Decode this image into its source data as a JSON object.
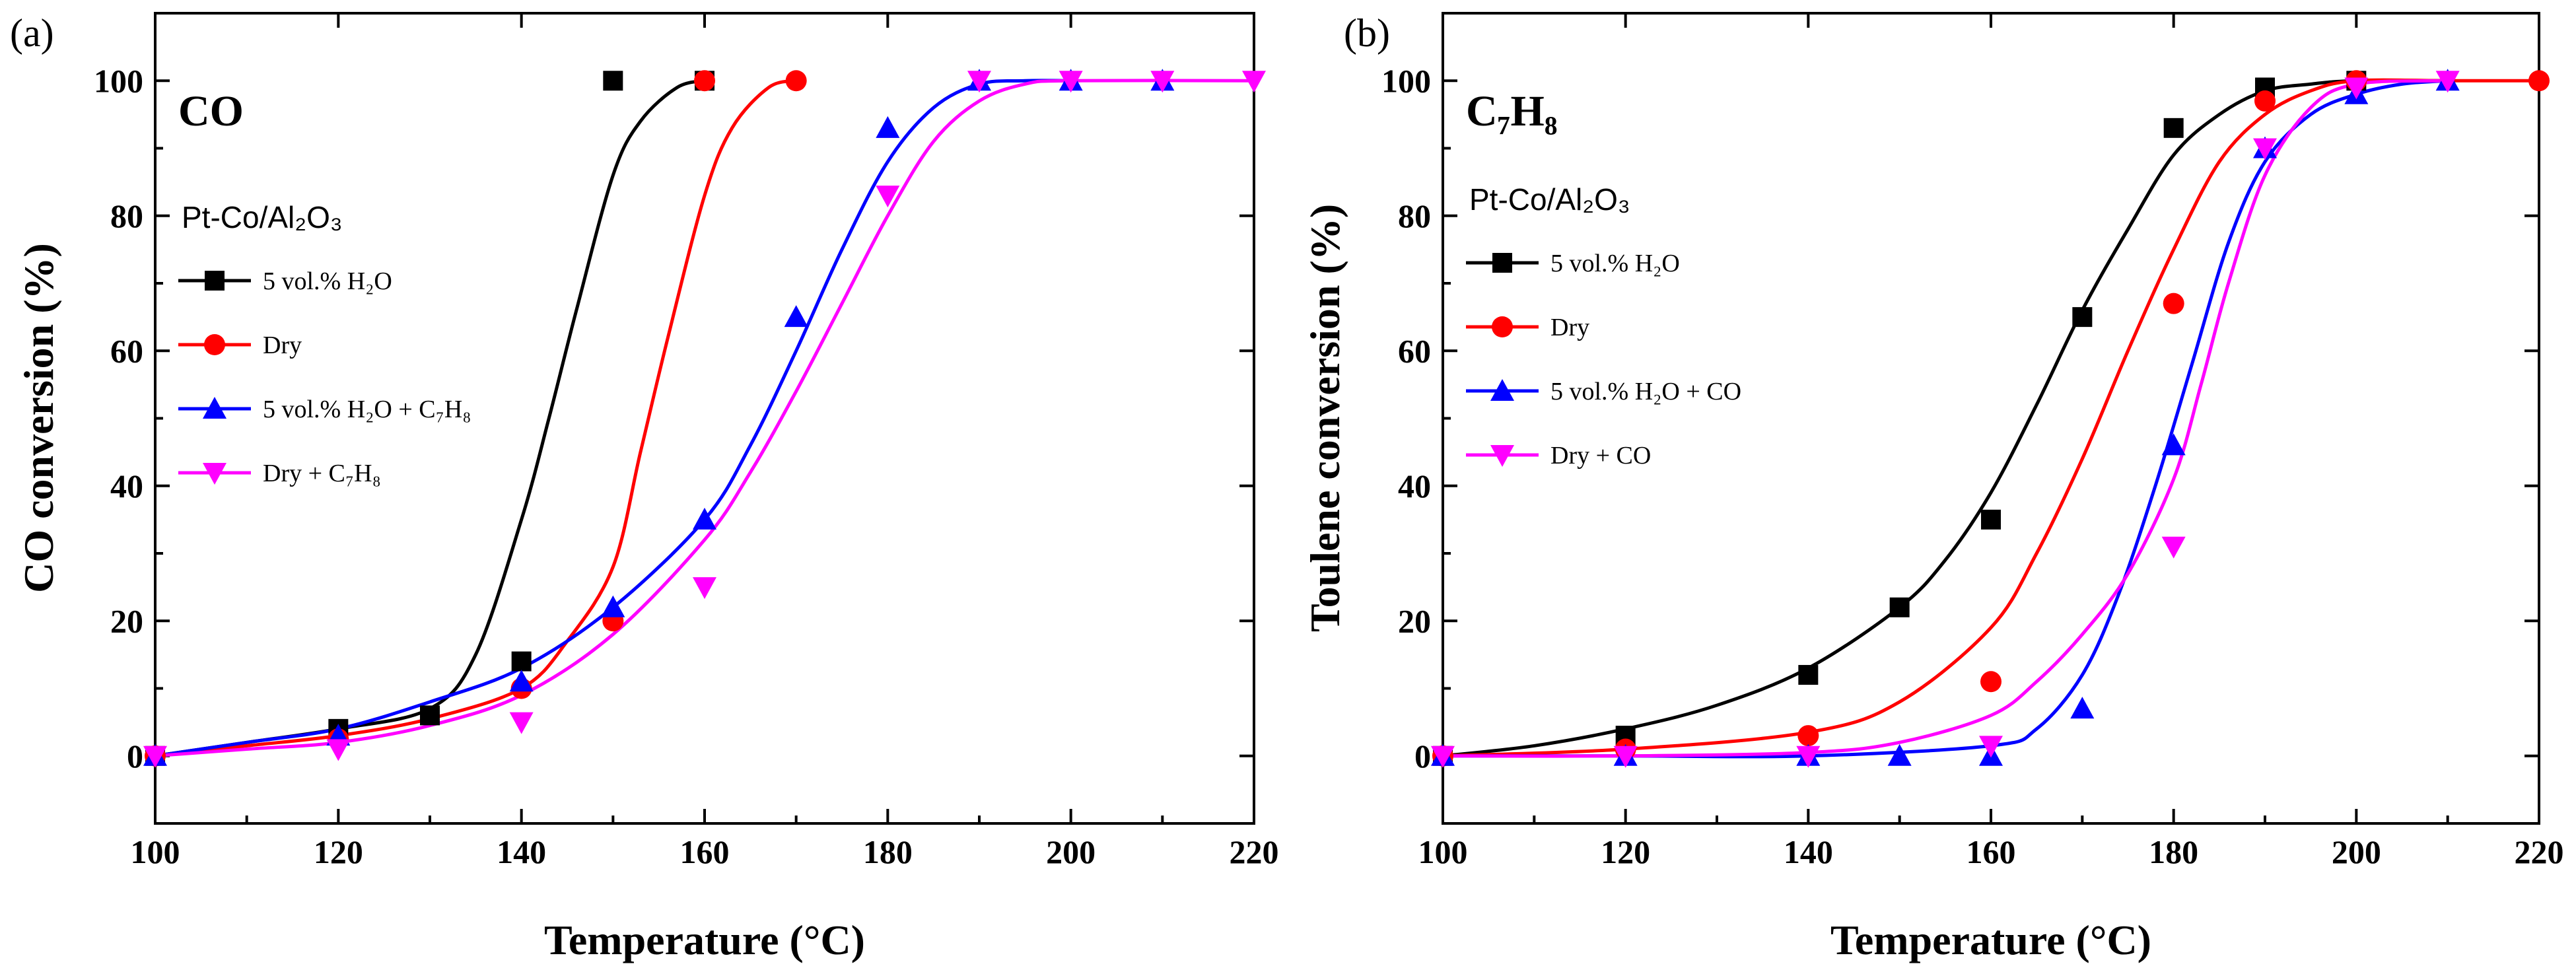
{
  "chart_data": [
    {
      "type": "line",
      "panel_label": "(a)",
      "title": "CO",
      "catalyst": "Pt-Co/Al₂O₃",
      "xlabel": "Temperature (°C)",
      "ylabel": "CO conversion (%)",
      "xlim": [
        100,
        220
      ],
      "ylim": [
        -10,
        110
      ],
      "xticks": [
        100,
        120,
        140,
        160,
        180,
        200,
        220
      ],
      "yticks": [
        0,
        20,
        40,
        60,
        80,
        100
      ],
      "legend_position": "upper-left",
      "series": [
        {
          "name": "5 vol.% H₂O",
          "color": "#000000",
          "marker": "square",
          "x": [
            100,
            120,
            130,
            140,
            150,
            160
          ],
          "y": [
            0,
            4,
            6,
            14,
            100,
            100
          ],
          "fit_x": [
            100,
            110,
            120,
            130,
            135,
            140,
            143,
            146,
            150,
            153,
            157,
            160
          ],
          "fit_y": [
            0,
            2,
            4,
            7,
            15,
            35,
            50,
            66,
            86,
            94,
            99,
            100
          ]
        },
        {
          "name": "Dry",
          "color": "#ff0000",
          "marker": "circle",
          "x": [
            100,
            120,
            140,
            150,
            160,
            170
          ],
          "y": [
            0,
            2.5,
            10,
            20,
            100,
            100
          ],
          "fit_x": [
            100,
            110,
            120,
            130,
            140,
            145,
            150,
            153,
            156,
            160,
            163,
            167,
            170
          ],
          "fit_y": [
            0,
            1.5,
            3,
            5.5,
            10,
            17,
            28,
            45,
            62,
            83,
            93,
            99,
            100
          ]
        },
        {
          "name": "5 vol.% H₂O + C₇H₈",
          "color": "#0000ff",
          "marker": "triangle-up",
          "x": [
            100,
            120,
            140,
            150,
            160,
            170,
            180,
            190,
            200,
            210
          ],
          "y": [
            0,
            3,
            11,
            22,
            35,
            65,
            93,
            100,
            100,
            100
          ],
          "fit_x": [
            100,
            110,
            120,
            130,
            140,
            150,
            160,
            165,
            170,
            175,
            180,
            185,
            190,
            195,
            200
          ],
          "fit_y": [
            0,
            2,
            4,
            8,
            13,
            22,
            35,
            46,
            60,
            75,
            88,
            96,
            99.5,
            100,
            100
          ]
        },
        {
          "name": "Dry + C₇H₈",
          "color": "#ff00ff",
          "marker": "triangle-down",
          "x": [
            100,
            120,
            140,
            160,
            180,
            190,
            200,
            210,
            220
          ],
          "y": [
            0,
            1,
            5,
            25,
            83,
            100,
            100,
            100,
            100
          ],
          "fit_x": [
            100,
            110,
            120,
            130,
            140,
            150,
            160,
            165,
            170,
            175,
            180,
            185,
            190,
            195,
            200,
            220
          ],
          "fit_y": [
            0,
            1,
            2,
            4.5,
            9,
            18,
            32,
            42,
            54,
            67,
            80,
            91,
            97,
            99.5,
            100,
            100
          ]
        }
      ]
    },
    {
      "type": "line",
      "panel_label": "(b)",
      "title": "C₇H₈",
      "catalyst": "Pt-Co/Al₂O₃",
      "xlabel": "Temperature (°C)",
      "ylabel": "Toulene conversion (%)",
      "xlim": [
        100,
        220
      ],
      "ylim": [
        -10,
        110
      ],
      "xticks": [
        100,
        120,
        140,
        160,
        180,
        200,
        220
      ],
      "yticks": [
        0,
        20,
        40,
        60,
        80,
        100
      ],
      "legend_position": "upper-left",
      "series": [
        {
          "name": "5 vol.% H₂O",
          "color": "#000000",
          "marker": "square",
          "x": [
            100,
            120,
            140,
            150,
            160,
            170,
            180,
            190,
            200
          ],
          "y": [
            0,
            3,
            12,
            22,
            35,
            65,
            93,
            99,
            100
          ],
          "fit_x": [
            100,
            110,
            120,
            130,
            140,
            150,
            155,
            160,
            165,
            170,
            175,
            180,
            185,
            190,
            195,
            200,
            210
          ],
          "fit_y": [
            0,
            1.5,
            4,
            7.5,
            13,
            22,
            29,
            39,
            52,
            66,
            78,
            89,
            95,
            98.5,
            99.5,
            100,
            100
          ]
        },
        {
          "name": "Dry",
          "color": "#ff0000",
          "marker": "circle",
          "x": [
            100,
            120,
            140,
            160,
            180,
            190,
            200,
            220
          ],
          "y": [
            0,
            1,
            3,
            11,
            67,
            97,
            100,
            100
          ],
          "fit_x": [
            100,
            120,
            140,
            150,
            160,
            165,
            170,
            175,
            180,
            185,
            190,
            195,
            200,
            210,
            220
          ],
          "fit_y": [
            0,
            1,
            3.5,
            8,
            19,
            30,
            44,
            60,
            75,
            88,
            95,
            98.5,
            100,
            100,
            100
          ]
        },
        {
          "name": "5 vol.% H₂O + CO",
          "color": "#0000ff",
          "marker": "triangle-up",
          "x": [
            100,
            120,
            140,
            150,
            160,
            170,
            180,
            190,
            200,
            210
          ],
          "y": [
            0,
            0,
            0,
            0,
            0,
            7,
            46,
            90,
            98,
            100
          ],
          "fit_x": [
            100,
            120,
            140,
            160,
            165,
            170,
            174,
            178,
            182,
            186,
            190,
            195,
            200,
            205,
            210
          ],
          "fit_y": [
            0,
            0,
            0,
            1.5,
            4,
            12,
            24,
            40,
            58,
            76,
            88,
            95,
            98,
            99.5,
            100
          ]
        },
        {
          "name": "Dry + CO",
          "color": "#ff00ff",
          "marker": "triangle-down",
          "x": [
            100,
            120,
            140,
            160,
            180,
            190,
            200,
            210
          ],
          "y": [
            0,
            0,
            0,
            1.5,
            31,
            90,
            99,
            100
          ],
          "fit_x": [
            100,
            120,
            140,
            150,
            160,
            165,
            170,
            175,
            180,
            183,
            186,
            190,
            195,
            200,
            210
          ],
          "fit_y": [
            0,
            0,
            0.5,
            2,
            6,
            11,
            18,
            27,
            41,
            55,
            70,
            86,
            96,
            99.5,
            100
          ]
        }
      ]
    }
  ]
}
